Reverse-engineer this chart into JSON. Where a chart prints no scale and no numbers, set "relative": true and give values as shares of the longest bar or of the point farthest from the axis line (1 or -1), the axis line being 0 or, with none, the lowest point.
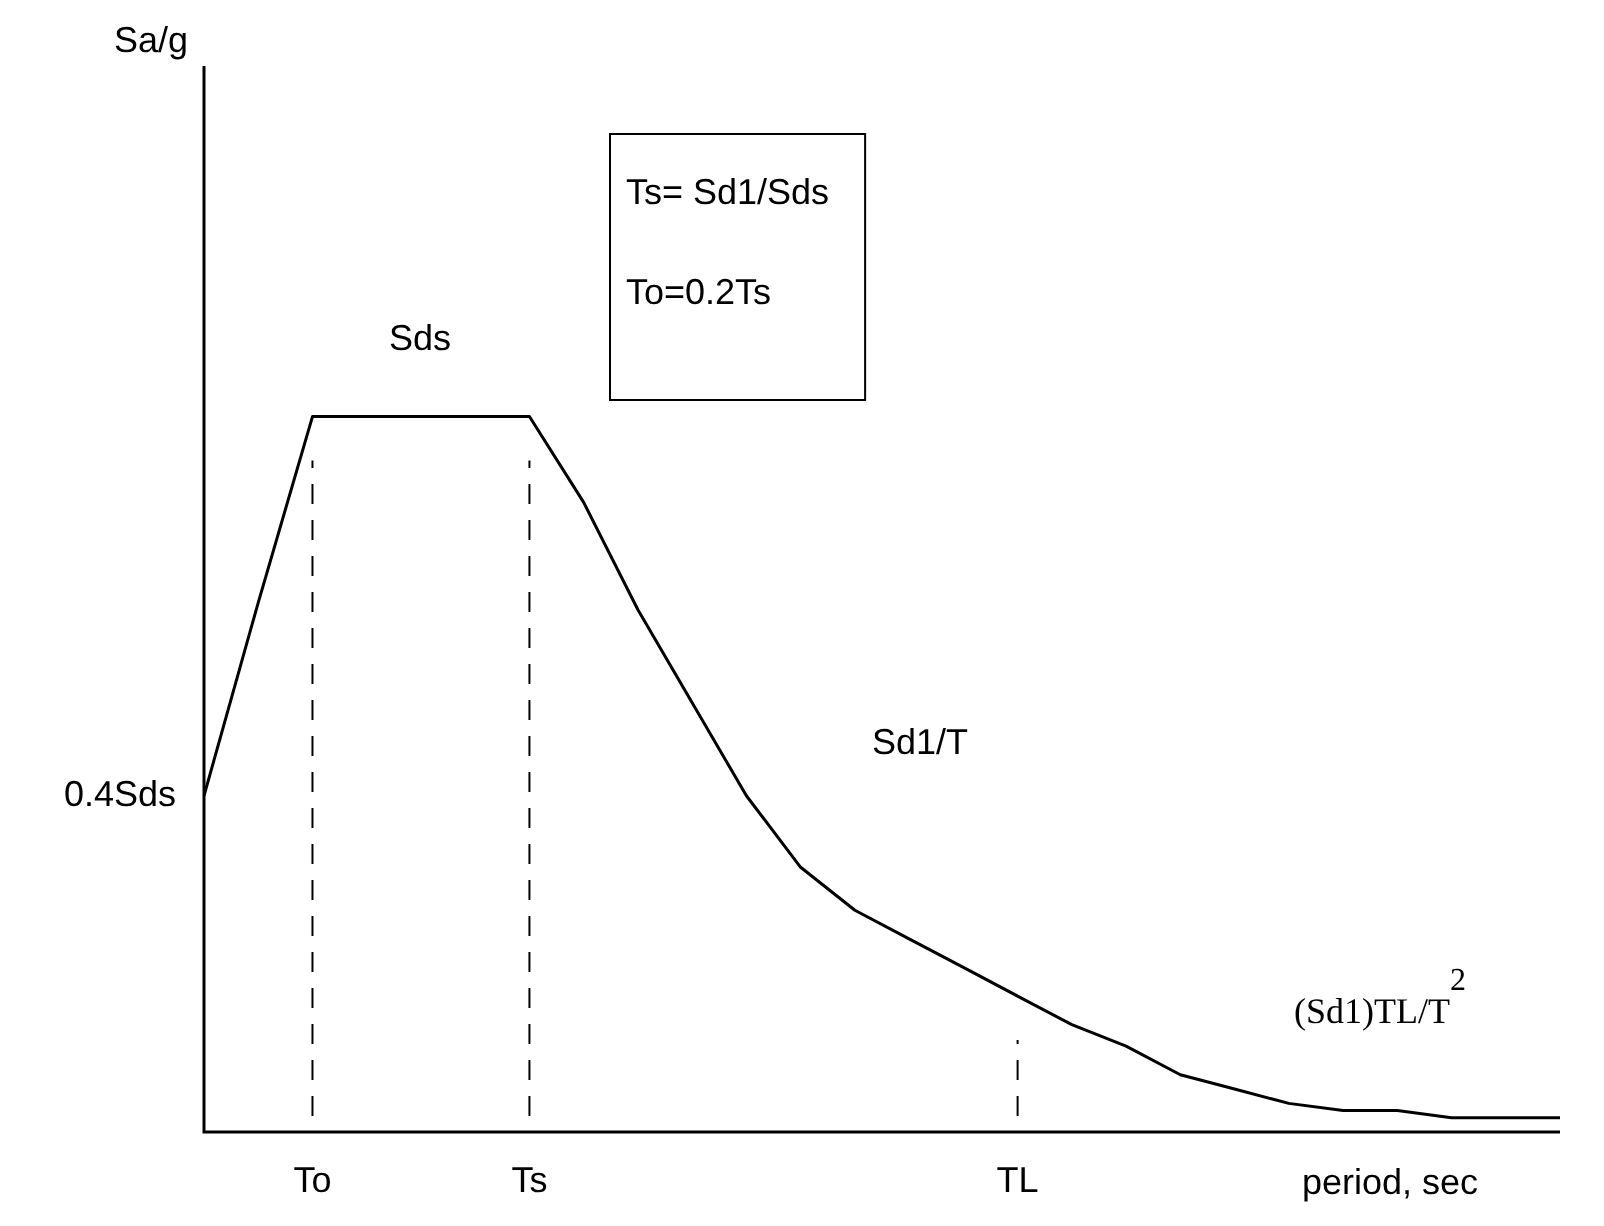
{
  "chart_data": {
    "type": "line",
    "relative": true,
    "xlabel": "period, sec",
    "tick_labels": "x",
    "marker": "none",
    "line_style": "solid",
    "categories": [
      null,
      null,
      "To",
      null,
      null,
      null,
      "Ts",
      null,
      null,
      null,
      null,
      null,
      null,
      null,
      null,
      "TL",
      null,
      null,
      null,
      null,
      null,
      null,
      null,
      null,
      null,
      null
    ],
    "series": [
      {
        "color": "#000000",
        "values": [
          0.47,
          0.74,
          1,
          1,
          1,
          1,
          1,
          0.88,
          0.73,
          0.6,
          0.47,
          0.37,
          0.31,
          0.27,
          0.23,
          0.19,
          0.15,
          0.12,
          0.08,
          0.06,
          0.04,
          0.03,
          0.03,
          0.02,
          0.02,
          0.02
        ]
      }
    ],
    "ref_lines": [
      {
        "axis": "x",
        "value": "To",
        "line_style": "dashed"
      },
      {
        "axis": "x",
        "value": "Ts",
        "line_style": "dashed"
      },
      {
        "axis": "x",
        "value": "TL",
        "line_style": "dashed"
      }
    ],
    "annotations": [
      "Sa/g",
      "0.4Sds",
      "Sds",
      "Sd1/T",
      "(Sd1)TL/T$^{2}$",
      "Ts= Sd1/Sds",
      "To=0.2Ts"
    ]
  }
}
